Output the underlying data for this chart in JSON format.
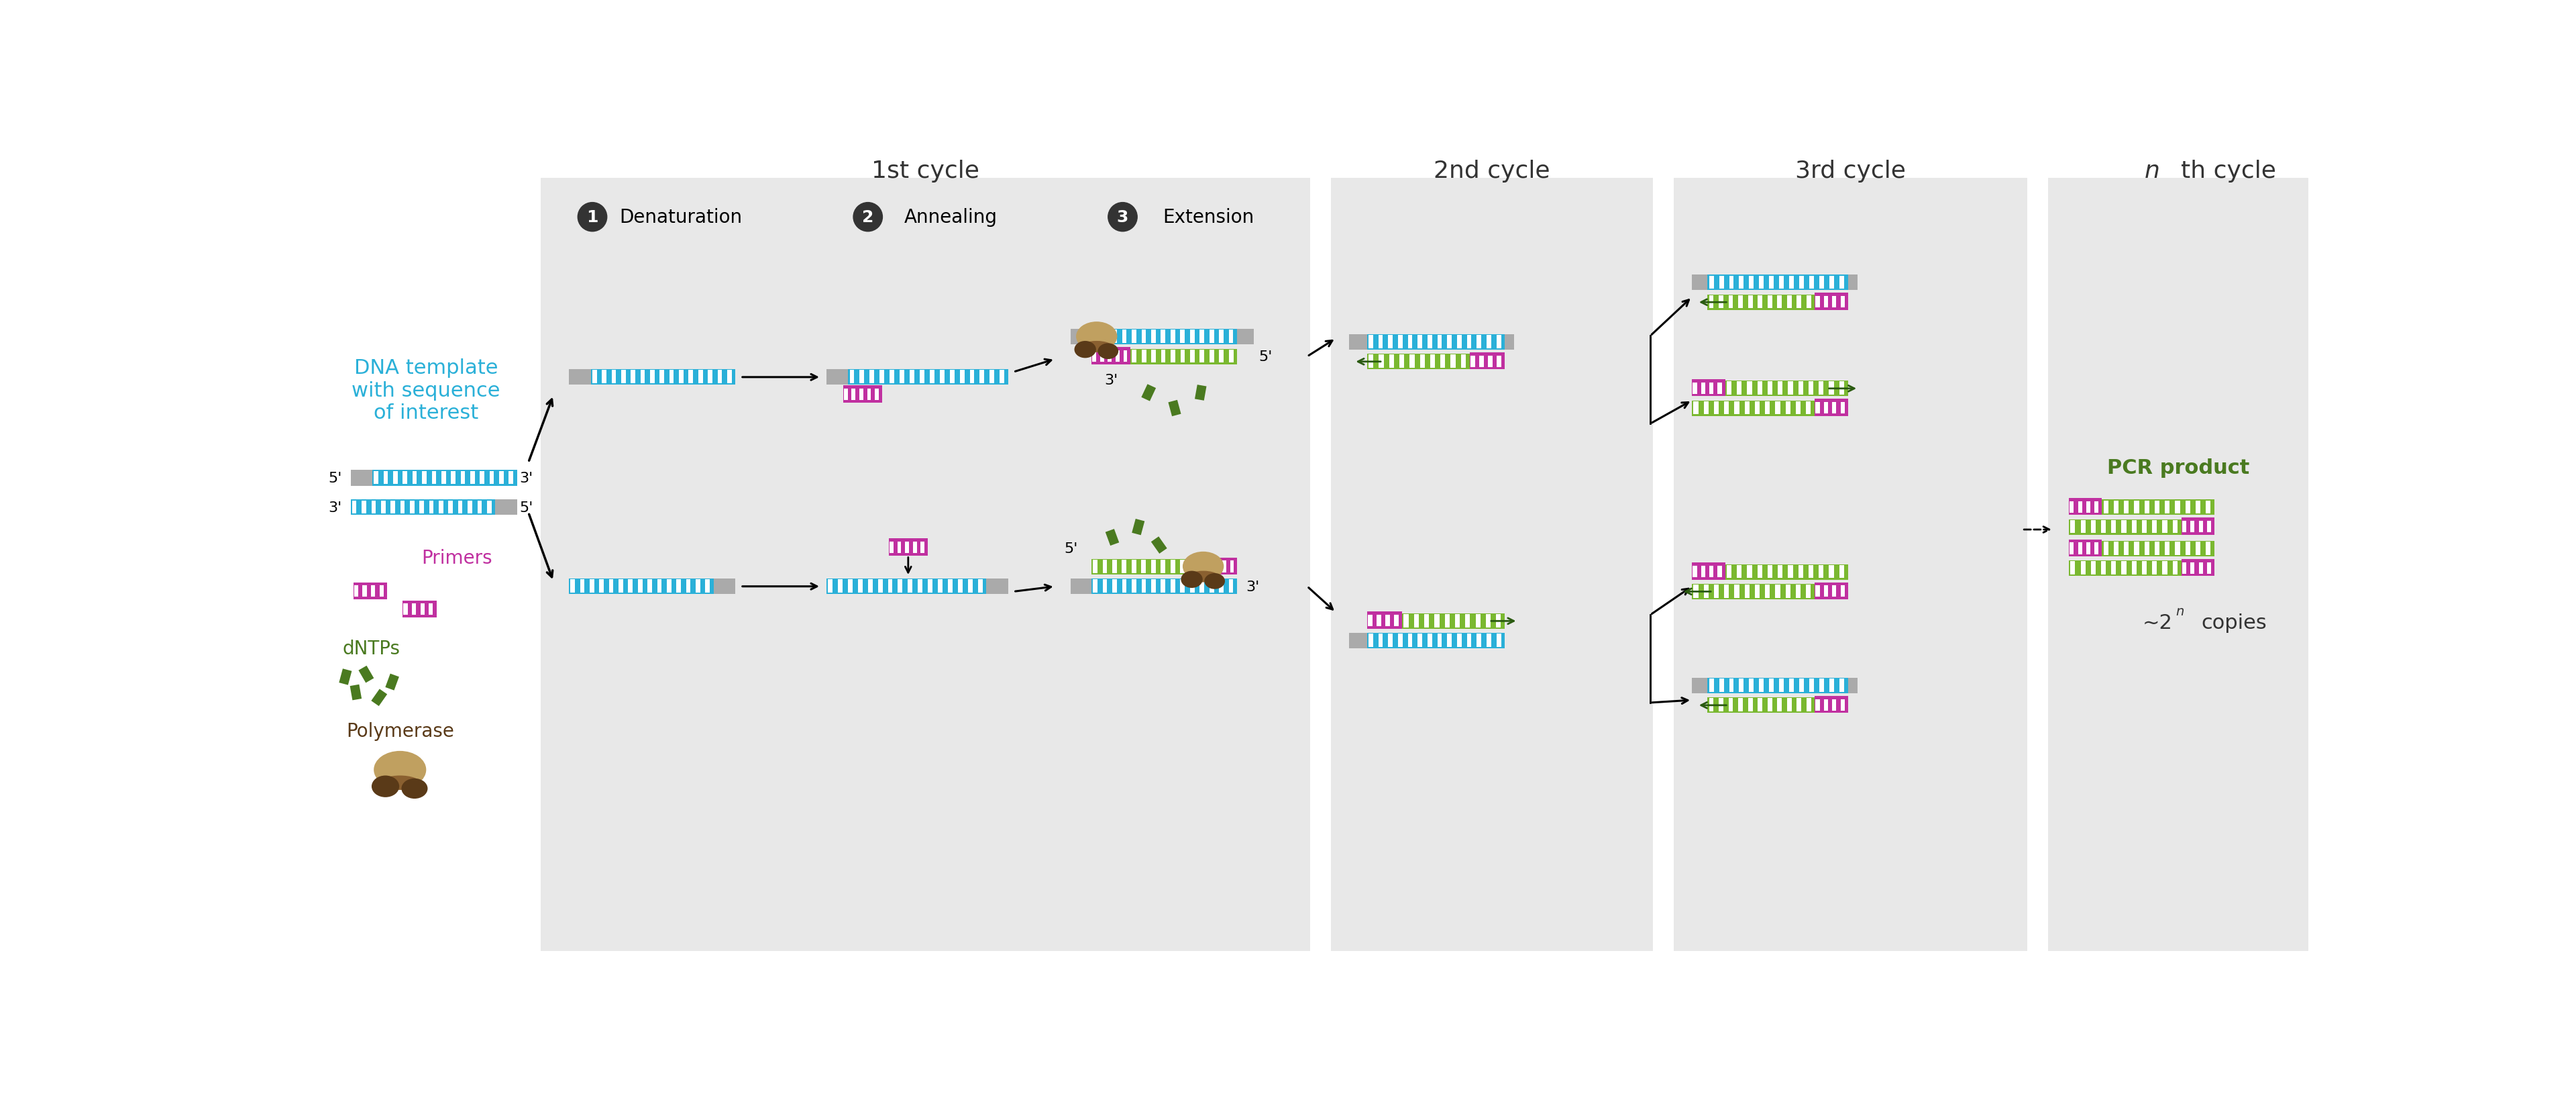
{
  "white_bg": "#ffffff",
  "panel_bg": "#e8e8e8",
  "cyan": "#2ab0d8",
  "cyan_light": "#7fd4e8",
  "gray_strand": "#aaaaaa",
  "gray_light": "#cccccc",
  "green_dark": "#4a7a20",
  "green_med": "#7ab830",
  "green_light": "#a8d050",
  "magenta": "#c030a0",
  "brown_dark": "#5a3a18",
  "brown_med": "#8a6030",
  "brown_light": "#c0a060",
  "title_color": "#333333",
  "title_1st": "1st cycle",
  "title_2nd": "2nd cycle",
  "title_3rd": "3rd cycle",
  "label_denat": "Denaturation",
  "label_anneal": "Annealing",
  "label_extend": "Extension",
  "label_dna": "DNA template\nwith sequence\nof interest",
  "label_primers": "Primers",
  "label_dntps": "dNTPs",
  "label_poly": "Polymerase",
  "label_pcr": "PCR product",
  "fs_title": 26,
  "fs_label": 20,
  "fs_step": 18,
  "fs_small": 16
}
